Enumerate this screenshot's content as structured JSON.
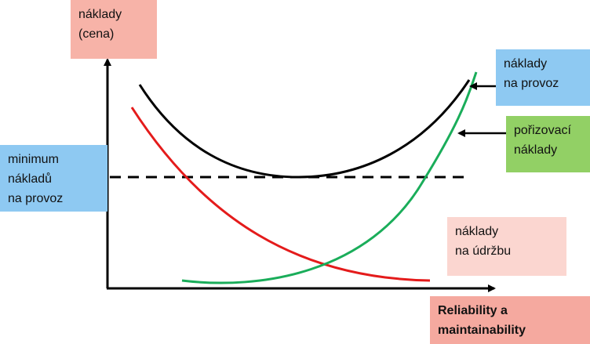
{
  "labels": {
    "y_axis": [
      "náklady",
      "(cena)"
    ],
    "operating_cost": [
      "náklady",
      "na provoz"
    ],
    "acquisition_cost": [
      "pořizovací",
      "náklady"
    ],
    "minimum": [
      "minimum",
      "nákladů",
      "na provoz"
    ],
    "maintenance_cost": [
      "náklady",
      "na údržbu"
    ],
    "x_axis": [
      "Reliability a",
      "maintainability"
    ]
  }
}
